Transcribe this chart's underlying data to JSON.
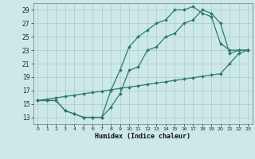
{
  "title": "",
  "xlabel": "Humidex (Indice chaleur)",
  "background_color": "#cce8e8",
  "grid_color": "#aacccc",
  "line_color": "#2d7a6a",
  "ylim": [
    12,
    30
  ],
  "xlim": [
    -0.5,
    23.5
  ],
  "yticks": [
    13,
    15,
    17,
    19,
    21,
    23,
    25,
    27,
    29
  ],
  "xticks": [
    0,
    1,
    2,
    3,
    4,
    5,
    6,
    7,
    8,
    9,
    10,
    11,
    12,
    13,
    14,
    15,
    16,
    17,
    18,
    19,
    20,
    21,
    22,
    23
  ],
  "line1_x": [
    0,
    1,
    2,
    3,
    4,
    5,
    6,
    7,
    8,
    9,
    10,
    11,
    12,
    13,
    14,
    15,
    16,
    17,
    18,
    19,
    20,
    21,
    22,
    23
  ],
  "line1_y": [
    15.5,
    15.7,
    15.9,
    16.1,
    16.3,
    16.5,
    16.7,
    16.9,
    17.1,
    17.3,
    17.5,
    17.7,
    17.9,
    18.1,
    18.3,
    18.5,
    18.7,
    18.9,
    19.1,
    19.3,
    19.5,
    21.0,
    22.5,
    23.0
  ],
  "line2_x": [
    0,
    1,
    2,
    3,
    4,
    5,
    6,
    7,
    8,
    9,
    10,
    11,
    12,
    13,
    14,
    15,
    16,
    17,
    18,
    19,
    20,
    21,
    22,
    23
  ],
  "line2_y": [
    15.5,
    15.5,
    15.5,
    14.0,
    13.5,
    13.0,
    13.0,
    13.0,
    14.5,
    16.5,
    20.0,
    20.5,
    23.0,
    23.5,
    25.0,
    25.5,
    27.0,
    27.5,
    29.0,
    28.5,
    27.0,
    22.5,
    23.0,
    23.0
  ],
  "line3_x": [
    0,
    1,
    2,
    3,
    4,
    5,
    6,
    7,
    8,
    9,
    10,
    11,
    12,
    13,
    14,
    15,
    16,
    17,
    18,
    19,
    20,
    21,
    22,
    23
  ],
  "line3_y": [
    15.5,
    15.5,
    15.5,
    14.0,
    13.5,
    13.0,
    13.0,
    13.0,
    17.0,
    20.0,
    23.5,
    25.0,
    26.0,
    27.0,
    27.5,
    29.0,
    29.0,
    29.5,
    28.5,
    28.0,
    24.0,
    23.0,
    23.0,
    23.0
  ]
}
